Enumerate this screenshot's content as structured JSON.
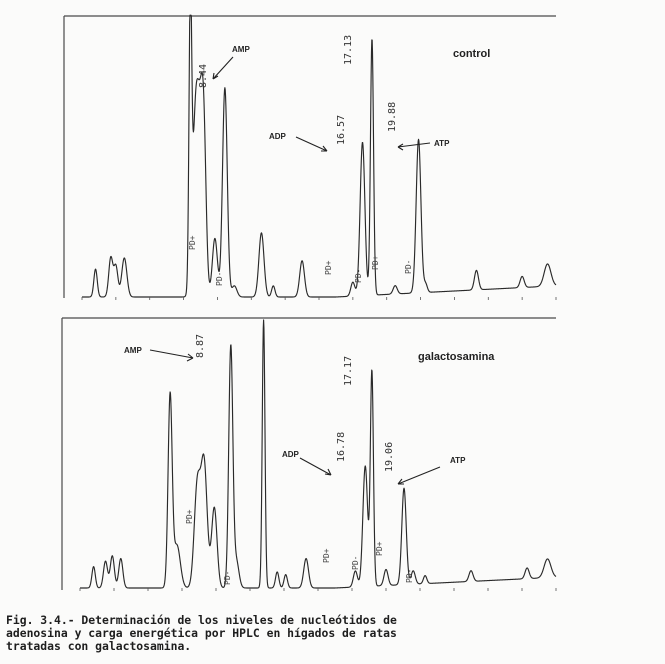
{
  "chart_data": [
    {
      "type": "line",
      "panel": "control",
      "title": "control",
      "labels": [
        {
          "text": "AMP",
          "rt": "8.44"
        },
        {
          "text": "ADP",
          "rt": "16.57"
        },
        {
          "text": "ATP",
          "rt": "19.88"
        }
      ],
      "peak_rt_labels": [
        "8.44",
        "16.57",
        "17.13",
        "19.88"
      ],
      "pd_labels": [
        "PD+",
        "PD-",
        "PD+",
        "PD-",
        "PD+",
        "PD-"
      ],
      "ylim": [
        0,
        100
      ],
      "peaks": [
        {
          "t": 0.8,
          "h": 10,
          "w": 0.1
        },
        {
          "t": 1.7,
          "h": 14,
          "w": 0.12
        },
        {
          "t": 2.0,
          "h": 11,
          "w": 0.12
        },
        {
          "t": 2.5,
          "h": 14,
          "w": 0.15
        },
        {
          "t": 6.4,
          "h": 100,
          "w": 0.08
        },
        {
          "t": 6.7,
          "h": 60,
          "w": 0.18
        },
        {
          "t": 7.0,
          "h": 48,
          "w": 0.18
        },
        {
          "t": 7.2,
          "h": 44,
          "w": 0.14
        },
        {
          "t": 7.85,
          "h": 21,
          "w": 0.15
        },
        {
          "t": 8.44,
          "h": 75,
          "w": 0.14
        },
        {
          "t": 9.0,
          "h": 4,
          "w": 0.15
        },
        {
          "t": 10.6,
          "h": 23,
          "w": 0.15
        },
        {
          "t": 11.3,
          "h": 4,
          "w": 0.1
        },
        {
          "t": 13.0,
          "h": 13,
          "w": 0.14
        },
        {
          "t": 16.0,
          "h": 5,
          "w": 0.12
        },
        {
          "t": 16.57,
          "h": 55,
          "w": 0.14
        },
        {
          "t": 17.13,
          "h": 92,
          "w": 0.09
        },
        {
          "t": 18.5,
          "h": 3,
          "w": 0.12
        },
        {
          "t": 19.88,
          "h": 55,
          "w": 0.14
        },
        {
          "t": 20.3,
          "h": 3,
          "w": 0.1
        },
        {
          "t": 23.3,
          "h": 7,
          "w": 0.12
        },
        {
          "t": 26.0,
          "h": 4,
          "w": 0.12
        },
        {
          "t": 27.5,
          "h": 8,
          "w": 0.2
        }
      ]
    },
    {
      "type": "line",
      "panel": "galactosamina",
      "title": "galactosamina",
      "labels": [
        {
          "text": "AMP",
          "rt": "8.87"
        },
        {
          "text": "ADP",
          "rt": "16.78"
        },
        {
          "text": "ATP",
          "rt": "19.06"
        }
      ],
      "peak_rt_labels": [
        "8.87",
        "16.78",
        "17.17",
        "19.06"
      ],
      "pd_labels": [
        "PD+",
        "PD-",
        "PD+",
        "PD-",
        "PD+",
        "PD-"
      ],
      "ylim": [
        0,
        100
      ],
      "peaks": [
        {
          "t": 0.8,
          "h": 8,
          "w": 0.1
        },
        {
          "t": 1.5,
          "h": 10,
          "w": 0.12
        },
        {
          "t": 1.9,
          "h": 12,
          "w": 0.12
        },
        {
          "t": 2.4,
          "h": 11,
          "w": 0.12
        },
        {
          "t": 5.3,
          "h": 71,
          "w": 0.12
        },
        {
          "t": 5.7,
          "h": 16,
          "w": 0.2
        },
        {
          "t": 6.9,
          "h": 38,
          "w": 0.18
        },
        {
          "t": 7.3,
          "h": 46,
          "w": 0.18
        },
        {
          "t": 7.9,
          "h": 30,
          "w": 0.16
        },
        {
          "t": 8.87,
          "h": 90,
          "w": 0.12
        },
        {
          "t": 9.2,
          "h": 10,
          "w": 0.15
        },
        {
          "t": 10.8,
          "h": 100,
          "w": 0.08
        },
        {
          "t": 11.6,
          "h": 6,
          "w": 0.1
        },
        {
          "t": 12.1,
          "h": 5,
          "w": 0.1
        },
        {
          "t": 13.3,
          "h": 11,
          "w": 0.14
        },
        {
          "t": 16.2,
          "h": 6,
          "w": 0.12
        },
        {
          "t": 16.78,
          "h": 45,
          "w": 0.14
        },
        {
          "t": 17.17,
          "h": 80,
          "w": 0.09
        },
        {
          "t": 18.0,
          "h": 6,
          "w": 0.12
        },
        {
          "t": 19.06,
          "h": 36,
          "w": 0.13
        },
        {
          "t": 19.6,
          "h": 5,
          "w": 0.12
        },
        {
          "t": 20.3,
          "h": 3,
          "w": 0.1
        },
        {
          "t": 23.0,
          "h": 4,
          "w": 0.12
        },
        {
          "t": 26.3,
          "h": 4,
          "w": 0.12
        },
        {
          "t": 27.5,
          "h": 7,
          "w": 0.2
        }
      ]
    }
  ],
  "caption": {
    "line1": "Fig. 3.4.- Determinación de los niveles de nucleótidos de",
    "line2": "adenosina y carga energética por HPLC en hígados de ratas",
    "line3": "tratadas con galactosamina."
  },
  "colors": {
    "trace": "#2a2a2a",
    "paper": "#fbfbfa"
  }
}
